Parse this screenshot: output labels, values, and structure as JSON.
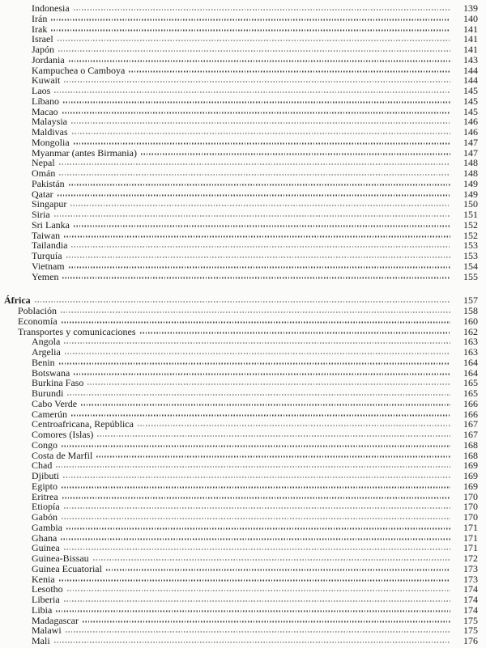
{
  "page": {
    "background": "#fbfbf9",
    "text_color": "#1b1b1b",
    "leader_dot_color": "#3c3c3c"
  },
  "toc": {
    "rows": [
      {
        "label": "Indonesia",
        "page": "139",
        "level": 3,
        "gap_before": false
      },
      {
        "label": "Irán",
        "page": "140",
        "level": 3,
        "gap_before": false
      },
      {
        "label": "Irak",
        "page": "141",
        "level": 3,
        "gap_before": false
      },
      {
        "label": "Israel",
        "page": "141",
        "level": 3,
        "gap_before": false
      },
      {
        "label": "Japón",
        "page": "141",
        "level": 3,
        "gap_before": false
      },
      {
        "label": "Jordania",
        "page": "143",
        "level": 3,
        "gap_before": false
      },
      {
        "label": "Kampuchea o Camboya",
        "page": "144",
        "level": 3,
        "gap_before": false
      },
      {
        "label": "Kuwait",
        "page": "144",
        "level": 3,
        "gap_before": false
      },
      {
        "label": "Laos",
        "page": "145",
        "level": 3,
        "gap_before": false
      },
      {
        "label": "Líbano",
        "page": "145",
        "level": 3,
        "gap_before": false
      },
      {
        "label": "Macao",
        "page": "145",
        "level": 3,
        "gap_before": false
      },
      {
        "label": "Malaysia",
        "page": "146",
        "level": 3,
        "gap_before": false
      },
      {
        "label": "Maldivas",
        "page": "146",
        "level": 3,
        "gap_before": false
      },
      {
        "label": "Mongolia",
        "page": "147",
        "level": 3,
        "gap_before": false
      },
      {
        "label": "Myanmar (antes Birmania)",
        "page": "147",
        "level": 3,
        "gap_before": false
      },
      {
        "label": "Nepal",
        "page": "148",
        "level": 3,
        "gap_before": false
      },
      {
        "label": "Omán",
        "page": "148",
        "level": 3,
        "gap_before": false
      },
      {
        "label": "Pakistán",
        "page": "149",
        "level": 3,
        "gap_before": false
      },
      {
        "label": "Qatar",
        "page": "149",
        "level": 3,
        "gap_before": false
      },
      {
        "label": "Singapur",
        "page": "150",
        "level": 3,
        "gap_before": false
      },
      {
        "label": "Siria",
        "page": "151",
        "level": 3,
        "gap_before": false
      },
      {
        "label": "Sri Lanka",
        "page": "152",
        "level": 3,
        "gap_before": false
      },
      {
        "label": "Taiwan",
        "page": "152",
        "level": 3,
        "gap_before": false
      },
      {
        "label": "Tailandia",
        "page": "153",
        "level": 3,
        "gap_before": false
      },
      {
        "label": "Turquía",
        "page": "153",
        "level": 3,
        "gap_before": false
      },
      {
        "label": "Vietnam",
        "page": "154",
        "level": 3,
        "gap_before": false
      },
      {
        "label": "Yemen",
        "page": "155",
        "level": 3,
        "gap_before": false
      },
      {
        "label": "África",
        "page": "157",
        "level": 1,
        "gap_before": true
      },
      {
        "label": "Población",
        "page": "158",
        "level": 2,
        "gap_before": false
      },
      {
        "label": "Economía",
        "page": "160",
        "level": 2,
        "gap_before": false
      },
      {
        "label": "Transportes y comunicaciones",
        "page": "162",
        "level": 2,
        "gap_before": false
      },
      {
        "label": "Angola",
        "page": "163",
        "level": 3,
        "gap_before": false
      },
      {
        "label": "Argelia",
        "page": "163",
        "level": 3,
        "gap_before": false
      },
      {
        "label": "Benin",
        "page": "164",
        "level": 3,
        "gap_before": false
      },
      {
        "label": "Botswana",
        "page": "164",
        "level": 3,
        "gap_before": false
      },
      {
        "label": "Burkina Faso",
        "page": "165",
        "level": 3,
        "gap_before": false
      },
      {
        "label": "Burundi",
        "page": "165",
        "level": 3,
        "gap_before": false
      },
      {
        "label": "Cabo Verde",
        "page": "166",
        "level": 3,
        "gap_before": false
      },
      {
        "label": "Camerún",
        "page": "166",
        "level": 3,
        "gap_before": false
      },
      {
        "label": "Centroafricana, República",
        "page": "167",
        "level": 3,
        "gap_before": false
      },
      {
        "label": "Comores (Islas)",
        "page": "167",
        "level": 3,
        "gap_before": false
      },
      {
        "label": "Congo",
        "page": "168",
        "level": 3,
        "gap_before": false
      },
      {
        "label": "Costa de Marfil",
        "page": "168",
        "level": 3,
        "gap_before": false
      },
      {
        "label": "Chad",
        "page": "169",
        "level": 3,
        "gap_before": false
      },
      {
        "label": "Djibuti",
        "page": "169",
        "level": 3,
        "gap_before": false
      },
      {
        "label": "Egipto",
        "page": "169",
        "level": 3,
        "gap_before": false
      },
      {
        "label": "Eritrea",
        "page": "170",
        "level": 3,
        "gap_before": false
      },
      {
        "label": "Etiopía",
        "page": "170",
        "level": 3,
        "gap_before": false
      },
      {
        "label": "Gabón",
        "page": "170",
        "level": 3,
        "gap_before": false
      },
      {
        "label": "Gambia",
        "page": "171",
        "level": 3,
        "gap_before": false
      },
      {
        "label": "Ghana",
        "page": "171",
        "level": 3,
        "gap_before": false
      },
      {
        "label": "Guinea",
        "page": "171",
        "level": 3,
        "gap_before": false
      },
      {
        "label": "Guinea-Bissau",
        "page": "172",
        "level": 3,
        "gap_before": false
      },
      {
        "label": "Guinea Ecuatorial",
        "page": "173",
        "level": 3,
        "gap_before": false
      },
      {
        "label": "Kenia",
        "page": "173",
        "level": 3,
        "gap_before": false
      },
      {
        "label": "Lesotho",
        "page": "174",
        "level": 3,
        "gap_before": false
      },
      {
        "label": "Liberia",
        "page": "174",
        "level": 3,
        "gap_before": false
      },
      {
        "label": "Libia",
        "page": "174",
        "level": 3,
        "gap_before": false
      },
      {
        "label": "Madagascar",
        "page": "175",
        "level": 3,
        "gap_before": false
      },
      {
        "label": "Malawi",
        "page": "175",
        "level": 3,
        "gap_before": false
      },
      {
        "label": "Mali",
        "page": "176",
        "level": 3,
        "gap_before": false
      }
    ]
  }
}
